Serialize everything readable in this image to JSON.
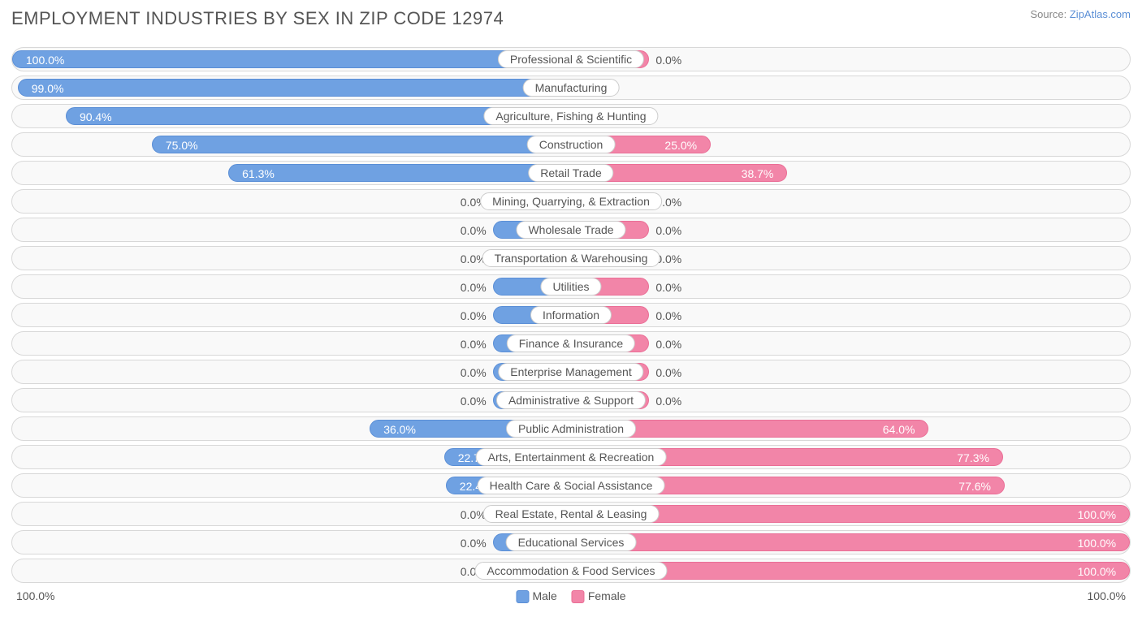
{
  "title": "EMPLOYMENT INDUSTRIES BY SEX IN ZIP CODE 12974",
  "source_prefix": "Source: ",
  "source_link": "ZipAtlas.com",
  "chart": {
    "type": "diverging-bar",
    "male_color": "#6fa1e2",
    "male_border": "#5a8ed6",
    "female_color": "#f285a8",
    "female_border": "#ea6e96",
    "row_bg": "#f9f9f9",
    "row_border": "#d8d8d8",
    "text_color": "#555555",
    "default_bar_pct": 14,
    "label_threshold": 18,
    "rows": [
      {
        "category": "Professional & Scientific",
        "male": 100.0,
        "female": 0.0
      },
      {
        "category": "Manufacturing",
        "male": 99.0,
        "female": 1.0
      },
      {
        "category": "Agriculture, Fishing & Hunting",
        "male": 90.4,
        "female": 9.6
      },
      {
        "category": "Construction",
        "male": 75.0,
        "female": 25.0
      },
      {
        "category": "Retail Trade",
        "male": 61.3,
        "female": 38.7
      },
      {
        "category": "Mining, Quarrying, & Extraction",
        "male": 0.0,
        "female": 0.0
      },
      {
        "category": "Wholesale Trade",
        "male": 0.0,
        "female": 0.0
      },
      {
        "category": "Transportation & Warehousing",
        "male": 0.0,
        "female": 0.0
      },
      {
        "category": "Utilities",
        "male": 0.0,
        "female": 0.0
      },
      {
        "category": "Information",
        "male": 0.0,
        "female": 0.0
      },
      {
        "category": "Finance & Insurance",
        "male": 0.0,
        "female": 0.0
      },
      {
        "category": "Enterprise Management",
        "male": 0.0,
        "female": 0.0
      },
      {
        "category": "Administrative & Support",
        "male": 0.0,
        "female": 0.0
      },
      {
        "category": "Public Administration",
        "male": 36.0,
        "female": 64.0
      },
      {
        "category": "Arts, Entertainment & Recreation",
        "male": 22.7,
        "female": 77.3
      },
      {
        "category": "Health Care & Social Assistance",
        "male": 22.4,
        "female": 77.6
      },
      {
        "category": "Real Estate, Rental & Leasing",
        "male": 0.0,
        "female": 100.0
      },
      {
        "category": "Educational Services",
        "male": 0.0,
        "female": 100.0
      },
      {
        "category": "Accommodation & Food Services",
        "male": 0.0,
        "female": 100.0
      }
    ]
  },
  "axis": {
    "left": "100.0%",
    "right": "100.0%"
  },
  "legend": {
    "male": "Male",
    "female": "Female"
  }
}
